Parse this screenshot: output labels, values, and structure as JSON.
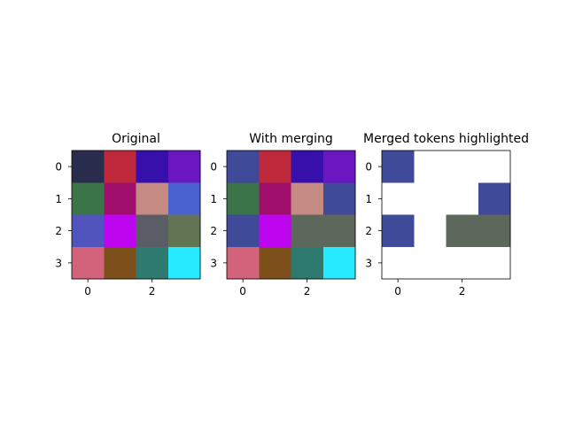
{
  "chart_data": [
    {
      "type": "heatmap",
      "title": "Original",
      "x_ticks": [
        "0",
        "2"
      ],
      "y_ticks": [
        "0",
        "1",
        "2",
        "3"
      ],
      "cells": [
        [
          "#2a2c4e",
          "#c0283b",
          "#3710ac",
          "#6a17c2"
        ],
        [
          "#3a7448",
          "#a10f6d",
          "#c58a82",
          "#4a62cf"
        ],
        [
          "#5054bc",
          "#bd05f0",
          "#5a5c66",
          "#637455"
        ],
        [
          "#d2637b",
          "#7d501b",
          "#2e7a6e",
          "#28eaff"
        ]
      ]
    },
    {
      "type": "heatmap",
      "title": "With merging",
      "x_ticks": [
        "0",
        "2"
      ],
      "y_ticks": [
        "0",
        "1",
        "2",
        "3"
      ],
      "cells": [
        [
          "#3f4a99",
          "#c0283b",
          "#3710ac",
          "#6a17c2"
        ],
        [
          "#3a7448",
          "#a10f6d",
          "#c58a82",
          "#3f4a99"
        ],
        [
          "#3f4a99",
          "#bd05f0",
          "#5d685c",
          "#5d685c"
        ],
        [
          "#d2637b",
          "#7d501b",
          "#2e7a6e",
          "#28eaff"
        ]
      ]
    },
    {
      "type": "heatmap",
      "title": "Merged tokens highlighted",
      "x_ticks": [
        "0",
        "2"
      ],
      "y_ticks": [
        "0",
        "1",
        "2",
        "3"
      ],
      "cells": [
        [
          "#3f4a99",
          "#ffffff",
          "#ffffff",
          "#ffffff"
        ],
        [
          "#ffffff",
          "#ffffff",
          "#ffffff",
          "#3f4a99"
        ],
        [
          "#3f4a99",
          "#ffffff",
          "#5d685c",
          "#5d685c"
        ],
        [
          "#ffffff",
          "#ffffff",
          "#ffffff",
          "#ffffff"
        ]
      ]
    }
  ]
}
